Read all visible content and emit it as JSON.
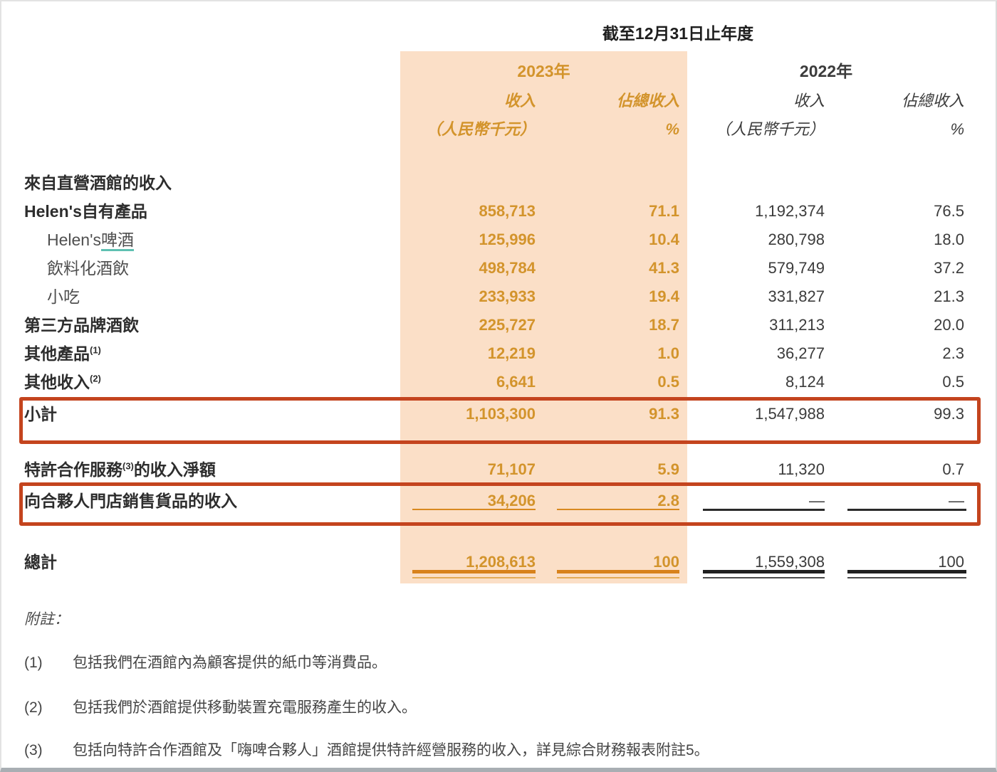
{
  "header": {
    "period_title": "截至12月31日止年度",
    "year_2023": "2023年",
    "year_2022": "2022年",
    "col_revenue": "收入",
    "col_pct": "佔總收入",
    "col_unit": "（人民幣千元）",
    "col_pct_sign": "%"
  },
  "colors": {
    "highlight_band": "#fbdfc7",
    "accent_orange_text": "#d3942c",
    "annotation_box_red": "#c4441e",
    "total_rule_orange": "#d8821c",
    "total_rule_black": "#202020",
    "teal_underline": "#5fc0b2"
  },
  "table": {
    "rows": [
      {
        "pre": "來自直營酒館的收入",
        "type": "section"
      },
      {
        "pre": "Helen's自有產品",
        "type": "bold",
        "cells": [
          "858,713",
          "71.1",
          "1,192,374",
          "76.5"
        ]
      },
      {
        "pre": "Helen's",
        "und": "啤酒",
        "type": "sub",
        "cells": [
          "125,996",
          "10.4",
          "280,798",
          "18.0"
        ]
      },
      {
        "pre": "飲料化酒飲",
        "type": "sub",
        "cells": [
          "498,784",
          "41.3",
          "579,749",
          "37.2"
        ]
      },
      {
        "pre": "小吃",
        "type": "sub",
        "cells": [
          "233,933",
          "19.4",
          "331,827",
          "21.3"
        ]
      },
      {
        "pre": "第三方品牌酒飲",
        "type": "bold",
        "cells": [
          "225,727",
          "18.7",
          "311,213",
          "20.0"
        ]
      },
      {
        "pre": "其他產品",
        "sup": "(1)",
        "type": "bold",
        "cells": [
          "12,219",
          "1.0",
          "36,277",
          "2.3"
        ]
      },
      {
        "pre": "其他收入",
        "sup": "(2)",
        "type": "bold",
        "cells": [
          "6,641",
          "0.5",
          "8,124",
          "0.5"
        ]
      },
      {
        "pre": "小計",
        "type": "bold",
        "cells": [
          "1,103,300",
          "91.3",
          "1,547,988",
          "99.3"
        ]
      },
      {
        "pre": "特許合作服務",
        "sup": "(3)",
        "post": "的收入淨額",
        "type": "bold",
        "cells": [
          "71,107",
          "5.9",
          "11,320",
          "0.7"
        ]
      },
      {
        "pre": "向合夥人門店銷售貨品的收入",
        "type": "bold",
        "rule": "single",
        "cells": [
          "34,206",
          "2.8",
          "—",
          "—"
        ]
      },
      {
        "pre": "總計",
        "type": "bold",
        "rule": "double",
        "cells": [
          "1,208,613",
          "100",
          "1,559,308",
          "100"
        ]
      }
    ]
  },
  "notes": {
    "heading": "附註：",
    "items": [
      {
        "num": "(1)",
        "text": "包括我們在酒館內為顧客提供的紙巾等消費品。"
      },
      {
        "num": "(2)",
        "text": "包括我們於酒館提供移動裝置充電服務產生的收入。"
      },
      {
        "num": "(3)",
        "text": "包括向特許合作酒館及「嗨啤合夥人」酒館提供特許經營服務的收入，詳見綜合財務報表附註5。"
      }
    ]
  }
}
